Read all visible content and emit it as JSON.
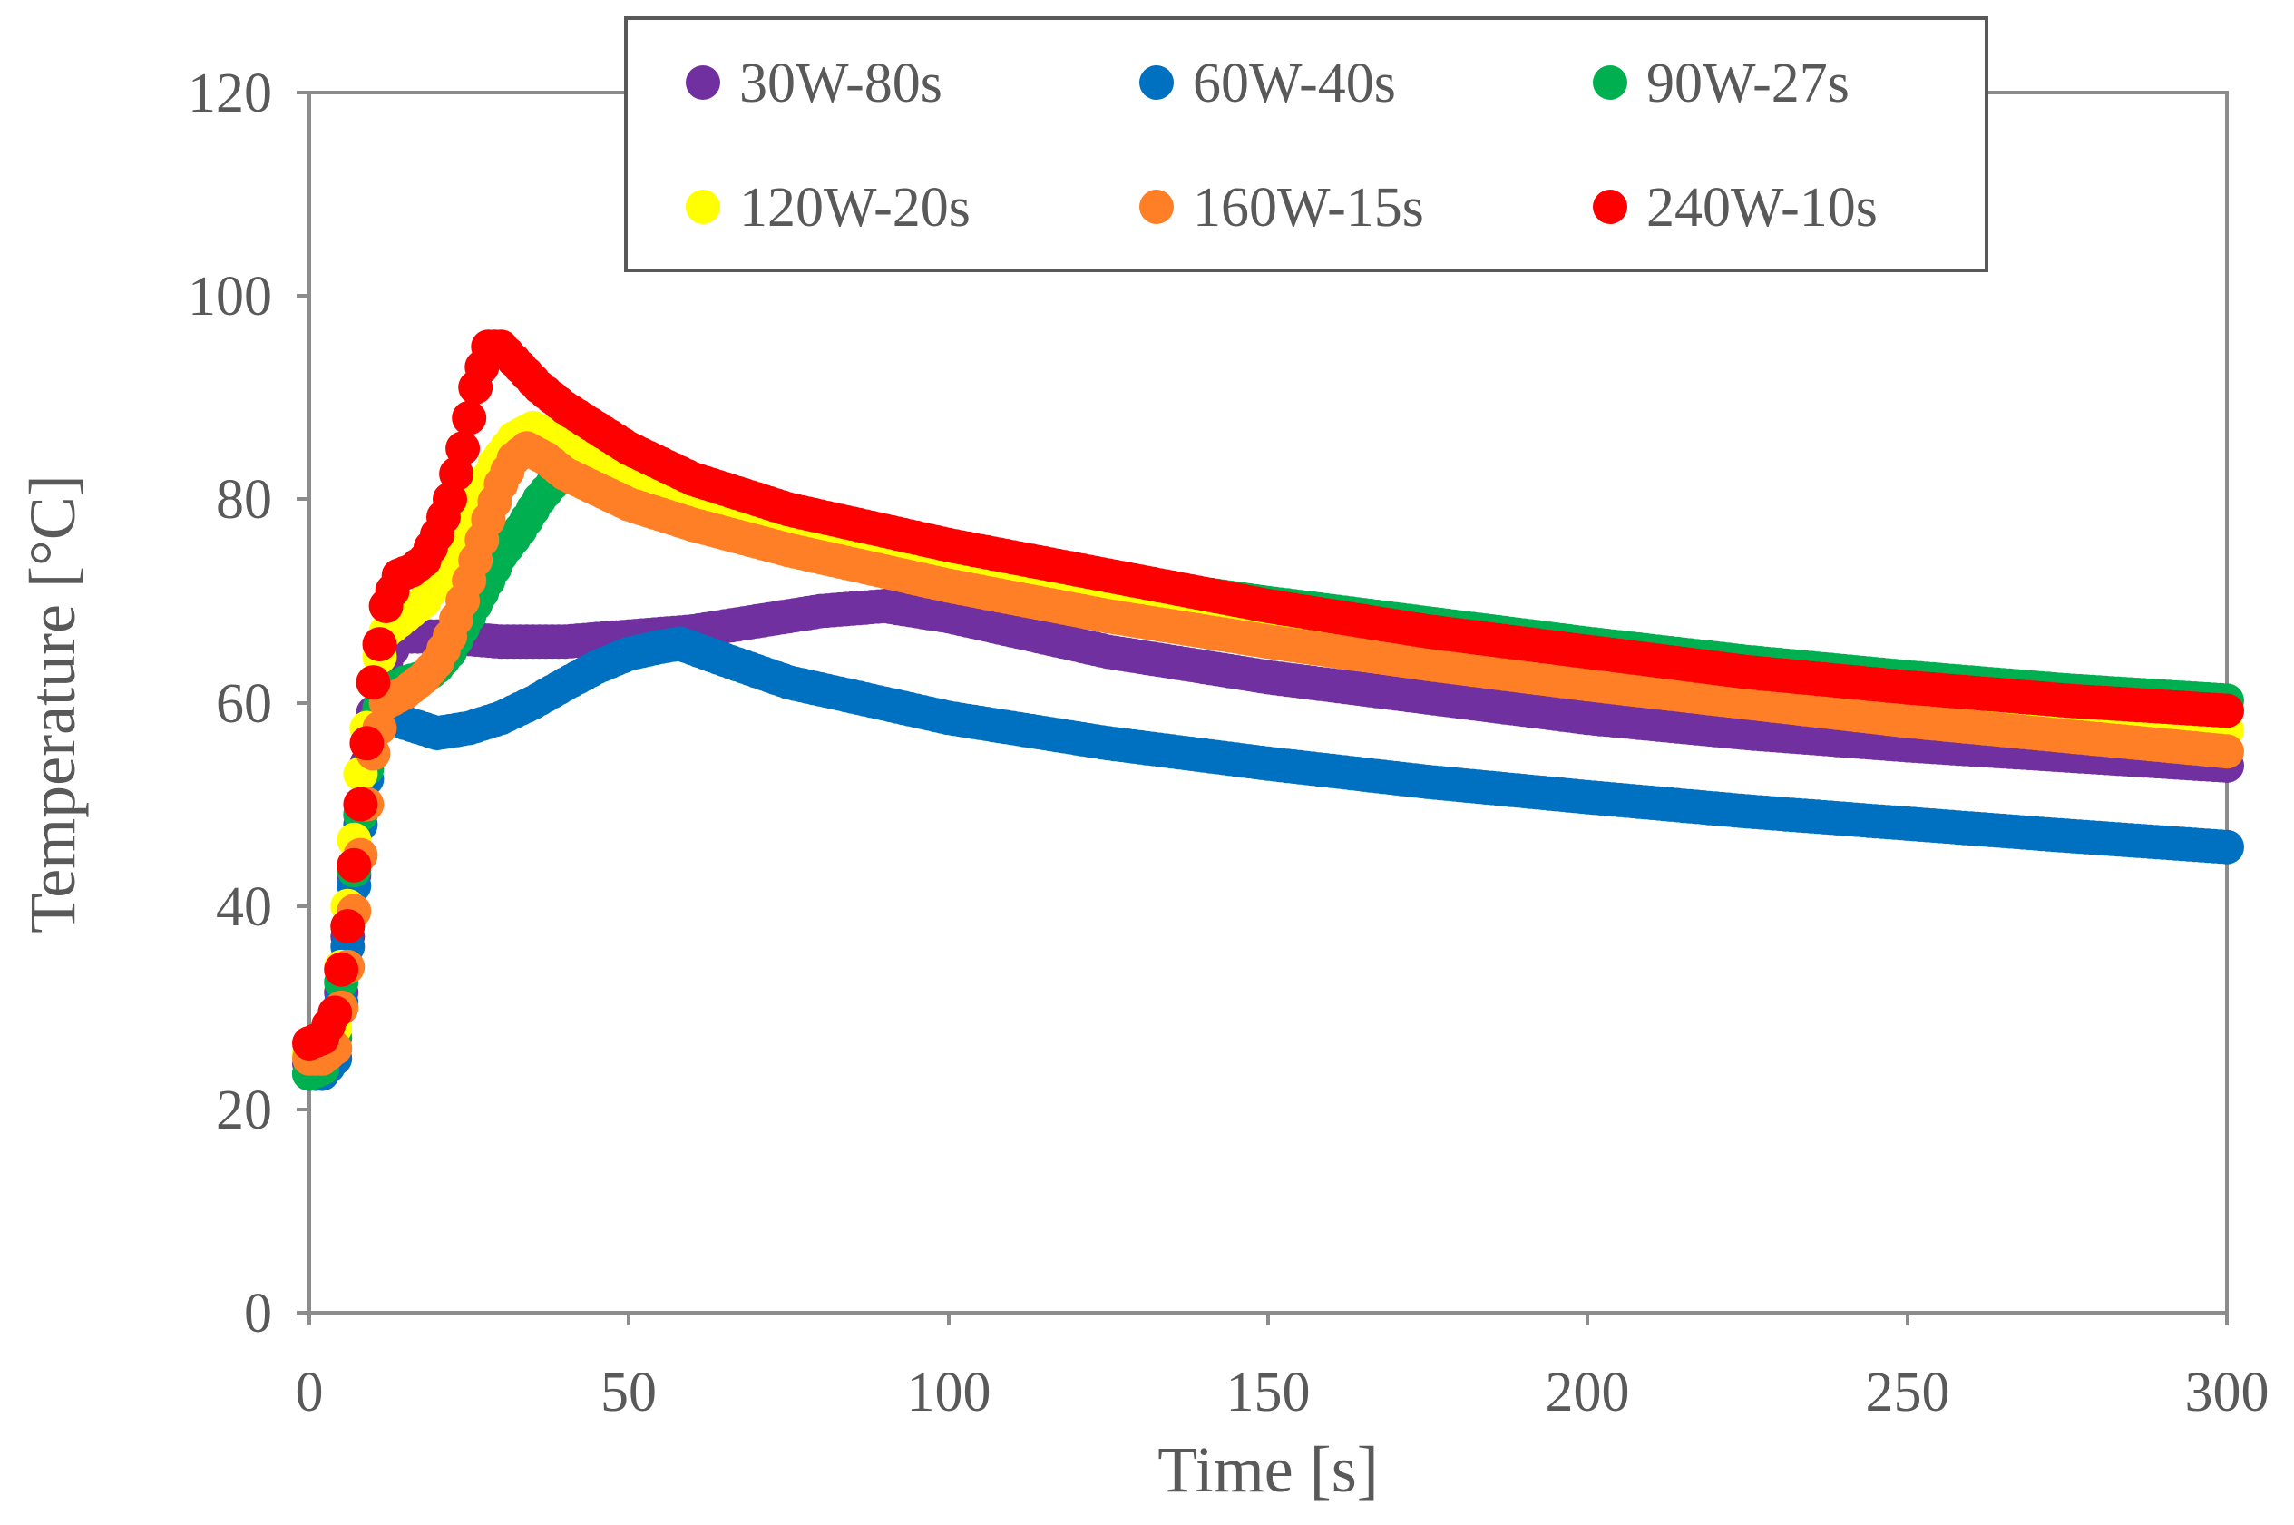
{
  "chart_data": {
    "type": "scatter",
    "title": "",
    "xlabel": "Time [s]",
    "ylabel": "Temperature [°C]",
    "xlim": [
      0,
      300
    ],
    "ylim": [
      0,
      120
    ],
    "xticks": [
      "0",
      "50",
      "100",
      "150",
      "200",
      "250",
      "300"
    ],
    "yticks": [
      "0",
      "20",
      "40",
      "60",
      "80",
      "100",
      "120"
    ],
    "grid": false,
    "legend_position": "top-center",
    "series": [
      {
        "name": "30W-80s",
        "color": "#7030a0",
        "points": [
          [
            0,
            24.5
          ],
          [
            2,
            24.5
          ],
          [
            4,
            26
          ],
          [
            6,
            37
          ],
          [
            8,
            49
          ],
          [
            10,
            59
          ],
          [
            12,
            64
          ],
          [
            14,
            66.5
          ],
          [
            20,
            66.5
          ],
          [
            30,
            66
          ],
          [
            40,
            66
          ],
          [
            50,
            66.5
          ],
          [
            60,
            67
          ],
          [
            70,
            68
          ],
          [
            80,
            69
          ],
          [
            90,
            69.5
          ],
          [
            100,
            68.5
          ],
          [
            125,
            65
          ],
          [
            150,
            62.5
          ],
          [
            175,
            60.5
          ],
          [
            200,
            58.5
          ],
          [
            225,
            57
          ],
          [
            250,
            55.8
          ],
          [
            275,
            54.8
          ],
          [
            300,
            53.8
          ]
        ]
      },
      {
        "name": "60W-40s",
        "color": "#0070c0",
        "points": [
          [
            0,
            23.5
          ],
          [
            2,
            23.5
          ],
          [
            4,
            25
          ],
          [
            6,
            36
          ],
          [
            8,
            48
          ],
          [
            10,
            57
          ],
          [
            12,
            60
          ],
          [
            15,
            58
          ],
          [
            20,
            57
          ],
          [
            25,
            57.5
          ],
          [
            30,
            58.5
          ],
          [
            35,
            60
          ],
          [
            40,
            61.8
          ],
          [
            45,
            63.5
          ],
          [
            50,
            64.8
          ],
          [
            55,
            65.5
          ],
          [
            58,
            65.8
          ],
          [
            65,
            64.2
          ],
          [
            75,
            62
          ],
          [
            100,
            58.5
          ],
          [
            125,
            56
          ],
          [
            150,
            54
          ],
          [
            175,
            52.2
          ],
          [
            200,
            50.7
          ],
          [
            225,
            49.3
          ],
          [
            250,
            48.1
          ],
          [
            275,
            46.9
          ],
          [
            300,
            45.8
          ]
        ]
      },
      {
        "name": "90W-27s",
        "color": "#00b050",
        "points": [
          [
            0,
            23.5
          ],
          [
            2,
            24
          ],
          [
            4,
            27
          ],
          [
            6,
            38
          ],
          [
            8,
            49
          ],
          [
            10,
            58
          ],
          [
            12,
            61
          ],
          [
            15,
            62
          ],
          [
            18,
            62.5
          ],
          [
            20,
            63.5
          ],
          [
            22,
            65
          ],
          [
            25,
            68.5
          ],
          [
            28,
            72
          ],
          [
            30,
            74.5
          ],
          [
            33,
            77
          ],
          [
            36,
            80
          ],
          [
            40,
            83
          ],
          [
            45,
            83
          ],
          [
            50,
            81.5
          ],
          [
            60,
            79.5
          ],
          [
            75,
            77.5
          ],
          [
            100,
            74.5
          ],
          [
            125,
            72
          ],
          [
            150,
            69.8
          ],
          [
            175,
            67.8
          ],
          [
            200,
            65.8
          ],
          [
            225,
            64
          ],
          [
            250,
            62.5
          ],
          [
            275,
            61.2
          ],
          [
            300,
            60.2
          ]
        ]
      },
      {
        "name": "120W-20s",
        "color": "#ffff00",
        "points": [
          [
            0,
            25.5
          ],
          [
            2,
            25.5
          ],
          [
            4,
            28
          ],
          [
            6,
            40
          ],
          [
            8,
            53
          ],
          [
            10,
            62
          ],
          [
            12,
            67
          ],
          [
            15,
            68.5
          ],
          [
            18,
            70
          ],
          [
            20,
            72
          ],
          [
            23,
            75.5
          ],
          [
            26,
            79.5
          ],
          [
            29,
            83.5
          ],
          [
            32,
            86
          ],
          [
            35,
            87
          ],
          [
            38,
            86
          ],
          [
            42,
            84.5
          ],
          [
            50,
            82
          ],
          [
            60,
            80
          ],
          [
            75,
            77.5
          ],
          [
            100,
            74
          ],
          [
            125,
            71.2
          ],
          [
            150,
            68.5
          ],
          [
            175,
            66
          ],
          [
            200,
            64
          ],
          [
            225,
            62
          ],
          [
            250,
            60.3
          ],
          [
            275,
            58.8
          ],
          [
            300,
            57.3
          ]
        ]
      },
      {
        "name": "160W-15s",
        "color": "#ff7f27",
        "points": [
          [
            0,
            25
          ],
          [
            2,
            25
          ],
          [
            4,
            26
          ],
          [
            6,
            34
          ],
          [
            8,
            45
          ],
          [
            10,
            55
          ],
          [
            12,
            60
          ],
          [
            15,
            61
          ],
          [
            18,
            62.5
          ],
          [
            20,
            64
          ],
          [
            22,
            66.5
          ],
          [
            24,
            70
          ],
          [
            26,
            74
          ],
          [
            28,
            78
          ],
          [
            30,
            81.5
          ],
          [
            32,
            84
          ],
          [
            34,
            85
          ],
          [
            37,
            84
          ],
          [
            40,
            82.5
          ],
          [
            45,
            81
          ],
          [
            50,
            79.5
          ],
          [
            60,
            77.5
          ],
          [
            75,
            75
          ],
          [
            100,
            71.5
          ],
          [
            125,
            68.5
          ],
          [
            150,
            66
          ],
          [
            175,
            63.8
          ],
          [
            200,
            61.8
          ],
          [
            225,
            60
          ],
          [
            250,
            58.2
          ],
          [
            275,
            56.7
          ],
          [
            300,
            55.2
          ]
        ]
      },
      {
        "name": "240W-10s",
        "color": "#ff0000",
        "points": [
          [
            0,
            26.5
          ],
          [
            2,
            27
          ],
          [
            4,
            29.5
          ],
          [
            6,
            38
          ],
          [
            8,
            50
          ],
          [
            10,
            62
          ],
          [
            12,
            69.5
          ],
          [
            14,
            72.5
          ],
          [
            16,
            73
          ],
          [
            18,
            74
          ],
          [
            20,
            76.5
          ],
          [
            22,
            80
          ],
          [
            24,
            85
          ],
          [
            26,
            91
          ],
          [
            28,
            95
          ],
          [
            30,
            95
          ],
          [
            33,
            93
          ],
          [
            36,
            91
          ],
          [
            40,
            89
          ],
          [
            45,
            87
          ],
          [
            50,
            85
          ],
          [
            60,
            82
          ],
          [
            75,
            79
          ],
          [
            100,
            75.5
          ],
          [
            125,
            72.5
          ],
          [
            150,
            69.5
          ],
          [
            175,
            67
          ],
          [
            200,
            65
          ],
          [
            225,
            63
          ],
          [
            250,
            61.5
          ],
          [
            275,
            60.2
          ],
          [
            300,
            59.2
          ]
        ]
      }
    ]
  }
}
